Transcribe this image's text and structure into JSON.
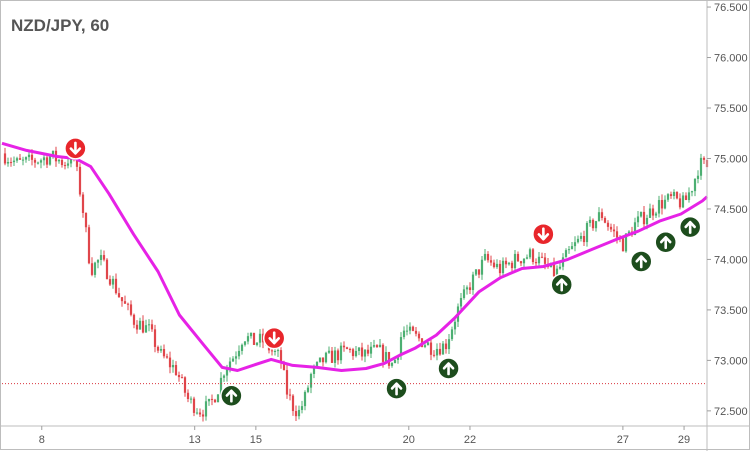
{
  "chart_data": {
    "type": "candlestick",
    "title": "NZD/JPY, 60",
    "y_ticks": [
      "76.500",
      "76.000",
      "75.500",
      "75.000",
      "74.500",
      "74.000",
      "73.500",
      "73.000",
      "72.500"
    ],
    "y_tick_values": [
      76.5,
      76.0,
      75.5,
      75.0,
      74.5,
      74.0,
      73.5,
      73.0,
      72.5
    ],
    "ylim": [
      72.35,
      76.55
    ],
    "x_ticks": [
      "8",
      "13",
      "15",
      "20",
      "22",
      "27",
      "29"
    ],
    "x_tick_values": [
      8,
      13,
      15,
      20,
      22,
      27,
      29
    ],
    "xlim": [
      6.7,
      29.75
    ],
    "horizontal_level": 72.77,
    "moving_average": {
      "color": "#e622e6",
      "x": [
        6.7,
        7.5,
        8.5,
        9.1,
        9.6,
        10.2,
        11.0,
        11.8,
        12.5,
        13.3,
        13.9,
        14.4,
        14.9,
        15.5,
        16.2,
        17.0,
        17.8,
        18.6,
        19.2,
        19.7,
        20.2,
        20.9,
        21.5,
        22.3,
        23.0,
        23.7,
        24.4,
        25.2,
        26.0,
        26.8,
        27.5,
        28.2,
        28.9,
        29.6,
        29.75
      ],
      "y": [
        75.15,
        75.08,
        75.02,
        75.0,
        74.92,
        74.65,
        74.25,
        73.88,
        73.45,
        73.15,
        72.93,
        72.9,
        72.95,
        73.01,
        72.95,
        72.93,
        72.9,
        72.92,
        72.97,
        73.05,
        73.12,
        73.25,
        73.42,
        73.68,
        73.82,
        73.91,
        73.93,
        74.0,
        74.1,
        74.2,
        74.28,
        74.38,
        74.45,
        74.58,
        74.62
      ]
    },
    "signals": [
      {
        "type": "sell",
        "x": 9.1,
        "y": 75.1
      },
      {
        "type": "buy",
        "x": 14.2,
        "y": 72.65
      },
      {
        "type": "sell",
        "x": 15.6,
        "y": 73.22
      },
      {
        "type": "buy",
        "x": 19.6,
        "y": 72.72
      },
      {
        "type": "buy",
        "x": 21.3,
        "y": 72.92
      },
      {
        "type": "sell",
        "x": 24.4,
        "y": 74.25
      },
      {
        "type": "buy",
        "x": 25.0,
        "y": 73.75
      },
      {
        "type": "buy",
        "x": 27.6,
        "y": 73.98
      },
      {
        "type": "buy",
        "x": 28.4,
        "y": 74.17
      },
      {
        "type": "buy",
        "x": 29.2,
        "y": 74.32
      }
    ],
    "price_path": {
      "x": [
        6.7,
        7.2,
        7.8,
        8.3,
        8.8,
        9.0,
        9.3,
        9.6,
        9.9,
        10.2,
        10.6,
        11.0,
        11.5,
        11.9,
        12.4,
        12.8,
        13.2,
        13.5,
        13.8,
        14.0,
        14.3,
        14.6,
        14.9,
        15.2,
        15.5,
        15.8,
        16.0,
        16.2,
        16.4,
        16.6,
        16.8,
        17.2,
        17.6,
        18.0,
        18.5,
        19.0,
        19.5,
        19.8,
        20.1,
        20.4,
        20.8,
        21.2,
        21.6,
        22.0,
        22.5,
        23.0,
        23.5,
        24.0,
        24.4,
        24.8,
        25.2,
        25.6,
        26.0,
        26.3,
        26.6,
        27.0,
        27.4,
        27.8,
        28.2,
        28.6,
        29.0,
        29.3,
        29.5,
        29.75
      ],
      "y": [
        75.05,
        74.95,
        74.98,
        75.02,
        74.95,
        75.1,
        74.6,
        73.9,
        74.0,
        73.85,
        73.6,
        73.4,
        73.3,
        73.05,
        72.9,
        72.6,
        72.5,
        72.55,
        72.75,
        72.95,
        73.05,
        73.25,
        73.18,
        73.2,
        73.1,
        73.02,
        72.7,
        72.55,
        72.48,
        72.62,
        72.85,
        73.0,
        73.05,
        73.1,
        73.05,
        73.1,
        72.95,
        73.3,
        73.25,
        73.2,
        73.12,
        73.15,
        73.5,
        73.75,
        74.0,
        73.9,
        74.0,
        74.05,
        73.95,
        73.85,
        74.05,
        74.2,
        74.35,
        74.45,
        74.3,
        74.15,
        74.35,
        74.45,
        74.55,
        74.6,
        74.55,
        74.75,
        74.95,
        74.92
      ]
    }
  }
}
